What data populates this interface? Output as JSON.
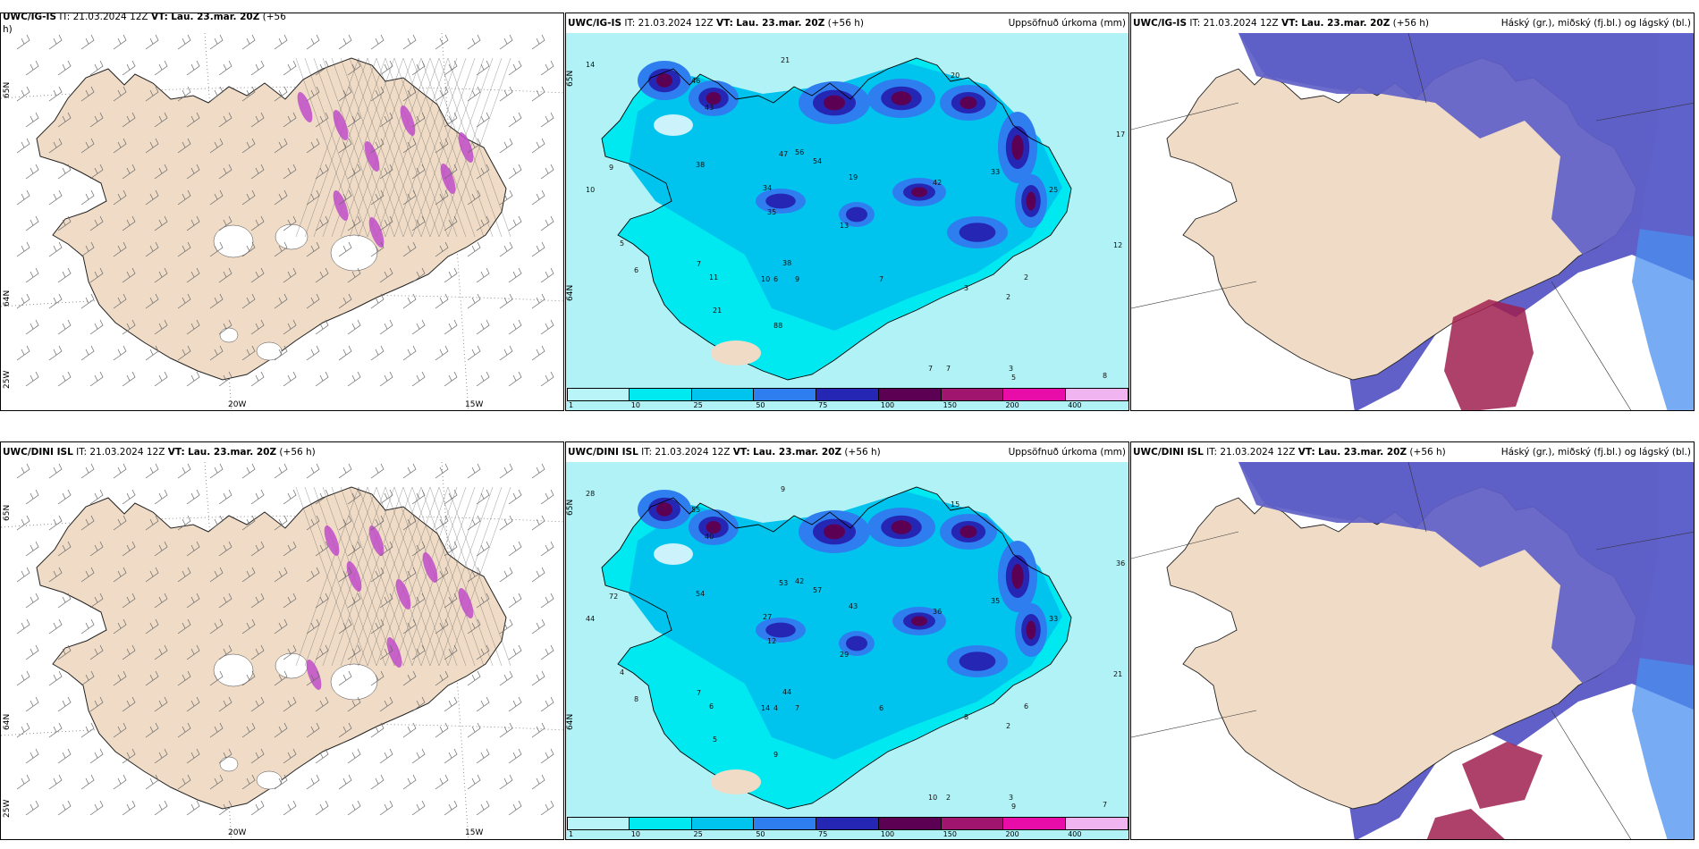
{
  "panels": [
    {
      "id": "top-left",
      "title": {
        "model": "UWC/IG-IS",
        "it_label": "IT:",
        "it": "21.03.2024 12Z",
        "vt_label": "VT:",
        "vt": "Lau. 23.mar. 20Z",
        "lead": "(+56",
        "lead2": "h)"
      },
      "type": "wind",
      "grid_labels": {
        "lat_top": "65N",
        "lat_mid": "64N",
        "lon_left": "25W",
        "lon_a": "20W",
        "lon_b": "15W"
      }
    },
    {
      "id": "top-middle",
      "title": {
        "model": "UWC/IG-IS",
        "it_label": "IT:",
        "it": "21.03.2024 12Z",
        "vt_label": "VT:",
        "vt": "Lau. 23.mar. 20Z",
        "lead": "(+56 h)",
        "right": "Uppsöfnuð úrkoma (mm)"
      },
      "type": "precip",
      "grid_labels": {
        "lat_top": "65N",
        "lat_mid": "64N"
      },
      "station_values": [
        "14",
        "21",
        "22",
        "20",
        "46",
        "43",
        "10",
        "9",
        "17",
        "12",
        "38",
        "56",
        "47",
        "54",
        "19",
        "42",
        "33",
        "25",
        "34",
        "35",
        "13",
        "38",
        "88",
        "5",
        "6",
        "7",
        "11",
        "21",
        "10",
        "6",
        "9",
        "7",
        "3",
        "2",
        "2",
        "7",
        "7",
        "3",
        "5",
        "8"
      ]
    },
    {
      "id": "top-right",
      "title": {
        "model": "UWC/IG-IS",
        "it_label": "IT:",
        "it": "21.03.2024 12Z",
        "vt_label": "VT:",
        "vt": "Lau. 23.mar. 20Z",
        "lead": "(+56 h)",
        "right": "Háský (gr.), miðský (fj.bl.) og lágský (bl.)"
      },
      "type": "cloud"
    },
    {
      "id": "bottom-left",
      "title": {
        "model": "UWC/DINI ISL",
        "it_label": "IT:",
        "it": "21.03.2024 12Z",
        "vt_label": "VT:",
        "vt": "Lau. 23.mar. 20Z",
        "lead": "(+56 h)"
      },
      "type": "wind",
      "grid_labels": {
        "lat_top": "65N",
        "lat_mid": "64N",
        "lon_left": "25W",
        "lon_a": "20W",
        "lon_b": "15W"
      }
    },
    {
      "id": "bottom-middle",
      "title": {
        "model": "UWC/DINI ISL",
        "it_label": "IT:",
        "it": "21.03.2024 12Z",
        "vt_label": "VT:",
        "vt": "Lau. 23.mar. 20Z",
        "lead": "(+56 h)",
        "right": "Uppsöfnuð úrkoma (mm)"
      },
      "type": "precip",
      "grid_labels": {
        "lat_top": "65N",
        "lat_mid": "64N"
      },
      "station_values": [
        "28",
        "9",
        "13",
        "15",
        "55",
        "40",
        "44",
        "72",
        "36",
        "21",
        "54",
        "42",
        "53",
        "57",
        "43",
        "36",
        "35",
        "33",
        "27",
        "12",
        "29",
        "44",
        "9",
        "4",
        "8",
        "7",
        "6",
        "5",
        "14",
        "4",
        "7",
        "6",
        "8",
        "6",
        "2",
        "2",
        "10",
        "3",
        "9",
        "7"
      ]
    },
    {
      "id": "bottom-right",
      "title": {
        "model": "UWC/DINI ISL",
        "it_label": "IT:",
        "it": "21.03.2024 12Z",
        "vt_label": "VT:",
        "vt": "Lau. 23.mar. 20Z",
        "lead": "(+56 h)",
        "right": "Háský (gr.), miðský (fj.bl.) og lágský (bl.)"
      },
      "type": "cloud"
    }
  ],
  "colorbar": {
    "labels": [
      "1",
      "10",
      "25",
      "50",
      "75",
      "100",
      "150",
      "200",
      "400"
    ],
    "colors": [
      "#b8f4f8",
      "#00e8f0",
      "#00c4ee",
      "#2e7ef0",
      "#2626b4",
      "#5c0054",
      "#a0156e",
      "#e80ca8",
      "#f0b4f0"
    ]
  },
  "colors": {
    "land": "#f0dcc6",
    "sea_precip": "#b0f2f6",
    "cloud_high": "#6060c8",
    "cloud_mid": "#4a8ff0",
    "cloud_low": "#a02050",
    "snow_patch": "#ffffff",
    "hatch": "#555555"
  }
}
